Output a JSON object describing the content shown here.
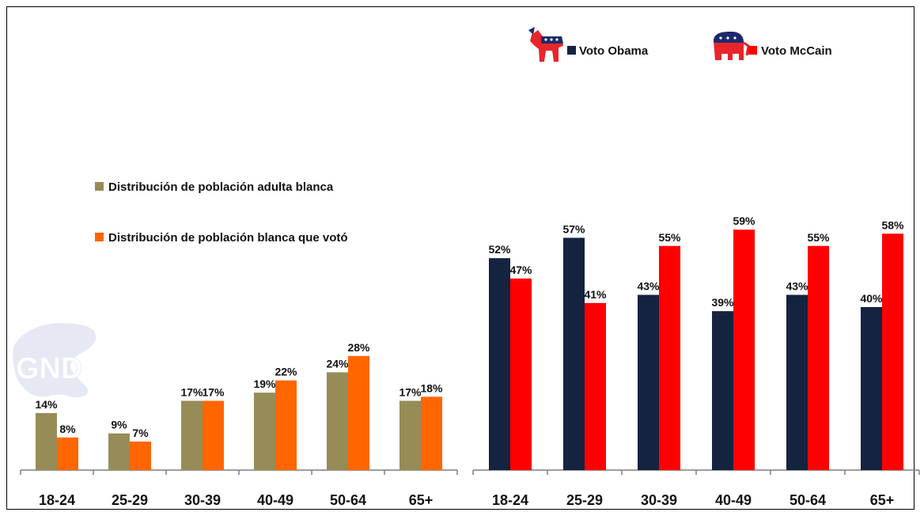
{
  "colors": {
    "adult_white": "#968c58",
    "voted_white": "#ff6600",
    "obama": "#14233f",
    "mccain": "#ff0000",
    "axis": "#7f7f7f"
  },
  "icons": [
    "democratic-donkey-icon",
    "republican-elephant-icon",
    "gnd-watermark-logo"
  ],
  "chart_data": [
    {
      "type": "bar",
      "categories": [
        "18-24",
        "25-29",
        "30-39",
        "40-49",
        "50-64",
        "65+"
      ],
      "series": [
        {
          "name": "Distribución de población adulta blanca",
          "values": [
            14,
            9,
            17,
            19,
            24,
            17
          ],
          "labels": [
            "14%",
            "9%",
            "17%",
            "19%",
            "24%",
            "17%"
          ]
        },
        {
          "name": "Distribución de población blanca que votó",
          "values": [
            8,
            7,
            17,
            22,
            28,
            18
          ],
          "labels": [
            "8%",
            "7%",
            "17%",
            "22%",
            "28%",
            "18%"
          ]
        }
      ],
      "ylim": [
        0,
        70
      ],
      "legend": "middle-left"
    },
    {
      "type": "bar",
      "categories": [
        "18-24",
        "25-29",
        "30-39",
        "40-49",
        "50-64",
        "65+"
      ],
      "series": [
        {
          "name": "Voto Obama",
          "values": [
            52,
            57,
            43,
            39,
            43,
            40
          ],
          "labels": [
            "52%",
            "57%",
            "43%",
            "39%",
            "43%",
            "40%"
          ]
        },
        {
          "name": "Voto McCain",
          "values": [
            47,
            41,
            55,
            59,
            55,
            58
          ],
          "labels": [
            "47%",
            "41%",
            "55%",
            "59%",
            "55%",
            "58%"
          ]
        }
      ],
      "ylim": [
        0,
        70
      ],
      "legend": "top"
    }
  ]
}
